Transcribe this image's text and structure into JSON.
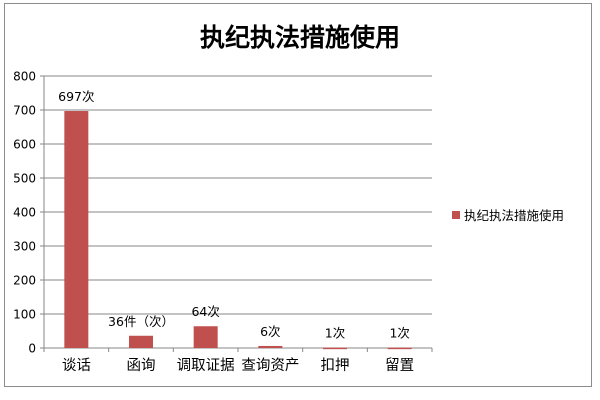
{
  "chart_data": {
    "type": "bar",
    "title": "执纪执法措施使用",
    "categories": [
      "谈话",
      "函询",
      "调取证据",
      "查询资产",
      "扣押",
      "留置"
    ],
    "series": [
      {
        "name": "执纪执法措施使用",
        "values": [
          697,
          36,
          64,
          6,
          1,
          1
        ],
        "color": "#c0504d"
      }
    ],
    "data_labels": [
      "697次",
      "36件（次）",
      "64次",
      "6次",
      "1次",
      "1次"
    ],
    "yticks": [
      "0",
      "100",
      "200",
      "300",
      "400",
      "500",
      "600",
      "700",
      "800"
    ],
    "ylim": [
      0,
      800
    ],
    "grid": true,
    "legend_position": "right",
    "xlabel": "",
    "ylabel": ""
  }
}
